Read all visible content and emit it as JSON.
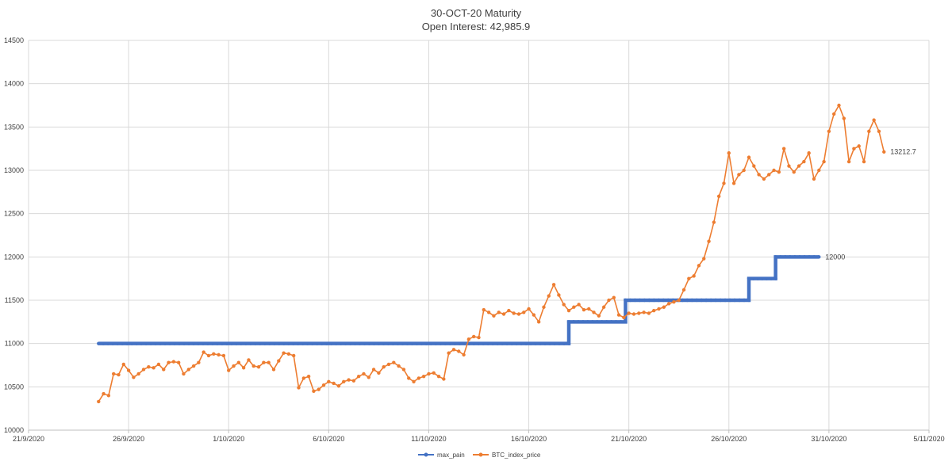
{
  "chart_data": {
    "type": "line",
    "title": "30-OCT-20 Maturity",
    "subtitle": "Open Interest: 42,985.9",
    "xlabel": "",
    "ylabel": "",
    "ylim": [
      10000,
      14500
    ],
    "yticks": [
      10000,
      10500,
      11000,
      11500,
      12000,
      12500,
      13000,
      13500,
      14000,
      14500
    ],
    "ytick_labels": [
      "10000",
      "10500",
      "11000",
      "11500",
      "12000",
      "12500",
      "13000",
      "13500",
      "14000",
      "14500"
    ],
    "xlim": [
      "2020-09-21",
      "2020-11-05"
    ],
    "xticks": [
      "2020-09-21",
      "2020-09-26",
      "2020-10-01",
      "2020-10-06",
      "2020-10-11",
      "2020-10-16",
      "2020-10-21",
      "2020-10-26",
      "2020-10-31",
      "2020-11-05"
    ],
    "xtick_labels": [
      "21/9/2020",
      "26/9/2020",
      "1/10/2020",
      "6/10/2020",
      "11/10/2020",
      "16/10/2020",
      "21/10/2020",
      "26/10/2020",
      "31/10/2020",
      "5/11/2020"
    ],
    "grid": true,
    "legend": "bottom",
    "series": [
      {
        "name": "max_pain",
        "color": "#4472c4",
        "points": [
          [
            "2020-09-24 12:00",
            11000
          ],
          [
            "2020-10-18 00:00",
            11000
          ],
          [
            "2020-10-18 00:00",
            11250
          ],
          [
            "2020-10-20 20:00",
            11250
          ],
          [
            "2020-10-20 20:00",
            11500
          ],
          [
            "2020-10-27 00:00",
            11500
          ],
          [
            "2020-10-27 00:00",
            11750
          ],
          [
            "2020-10-28 08:00",
            11750
          ],
          [
            "2020-10-28 08:00",
            12000
          ],
          [
            "2020-10-30 12:00",
            12000
          ]
        ],
        "end_label": "12000"
      },
      {
        "name": "BTC_index_price",
        "color": "#ed7d31",
        "points": [
          [
            "2020-09-24 12:00",
            10330
          ],
          [
            "2020-09-24 18:00",
            10420
          ],
          [
            "2020-09-25 00:00",
            10400
          ],
          [
            "2020-09-25 06:00",
            10650
          ],
          [
            "2020-09-25 12:00",
            10640
          ],
          [
            "2020-09-25 18:00",
            10760
          ],
          [
            "2020-09-26 00:00",
            10690
          ],
          [
            "2020-09-26 06:00",
            10610
          ],
          [
            "2020-09-26 12:00",
            10650
          ],
          [
            "2020-09-26 18:00",
            10700
          ],
          [
            "2020-09-27 00:00",
            10730
          ],
          [
            "2020-09-27 06:00",
            10720
          ],
          [
            "2020-09-27 12:00",
            10760
          ],
          [
            "2020-09-27 18:00",
            10700
          ],
          [
            "2020-09-28 00:00",
            10780
          ],
          [
            "2020-09-28 06:00",
            10790
          ],
          [
            "2020-09-28 12:00",
            10780
          ],
          [
            "2020-09-28 18:00",
            10650
          ],
          [
            "2020-09-29 00:00",
            10700
          ],
          [
            "2020-09-29 06:00",
            10740
          ],
          [
            "2020-09-29 12:00",
            10780
          ],
          [
            "2020-09-29 18:00",
            10900
          ],
          [
            "2020-09-30 00:00",
            10860
          ],
          [
            "2020-09-30 06:00",
            10880
          ],
          [
            "2020-09-30 12:00",
            10870
          ],
          [
            "2020-09-30 18:00",
            10860
          ],
          [
            "2020-10-01 00:00",
            10690
          ],
          [
            "2020-10-01 06:00",
            10740
          ],
          [
            "2020-10-01 12:00",
            10780
          ],
          [
            "2020-10-01 18:00",
            10720
          ],
          [
            "2020-10-02 00:00",
            10810
          ],
          [
            "2020-10-02 06:00",
            10740
          ],
          [
            "2020-10-02 12:00",
            10730
          ],
          [
            "2020-10-02 18:00",
            10780
          ],
          [
            "2020-10-03 00:00",
            10780
          ],
          [
            "2020-10-03 06:00",
            10700
          ],
          [
            "2020-10-03 12:00",
            10800
          ],
          [
            "2020-10-03 18:00",
            10890
          ],
          [
            "2020-10-04 00:00",
            10880
          ],
          [
            "2020-10-04 06:00",
            10860
          ],
          [
            "2020-10-04 12:00",
            10490
          ],
          [
            "2020-10-04 18:00",
            10600
          ],
          [
            "2020-10-05 00:00",
            10620
          ],
          [
            "2020-10-05 06:00",
            10450
          ],
          [
            "2020-10-05 12:00",
            10470
          ],
          [
            "2020-10-05 18:00",
            10520
          ],
          [
            "2020-10-06 00:00",
            10560
          ],
          [
            "2020-10-06 06:00",
            10540
          ],
          [
            "2020-10-06 12:00",
            10510
          ],
          [
            "2020-10-06 18:00",
            10560
          ],
          [
            "2020-10-07 00:00",
            10580
          ],
          [
            "2020-10-07 06:00",
            10570
          ],
          [
            "2020-10-07 12:00",
            10620
          ],
          [
            "2020-10-07 18:00",
            10650
          ],
          [
            "2020-10-08 00:00",
            10610
          ],
          [
            "2020-10-08 06:00",
            10700
          ],
          [
            "2020-10-08 12:00",
            10660
          ],
          [
            "2020-10-08 18:00",
            10730
          ],
          [
            "2020-10-09 00:00",
            10760
          ],
          [
            "2020-10-09 06:00",
            10780
          ],
          [
            "2020-10-09 12:00",
            10740
          ],
          [
            "2020-10-09 18:00",
            10700
          ],
          [
            "2020-10-10 00:00",
            10600
          ],
          [
            "2020-10-10 06:00",
            10560
          ],
          [
            "2020-10-10 12:00",
            10600
          ],
          [
            "2020-10-10 18:00",
            10620
          ],
          [
            "2020-10-11 00:00",
            10650
          ],
          [
            "2020-10-11 06:00",
            10660
          ],
          [
            "2020-10-11 12:00",
            10620
          ],
          [
            "2020-10-11 18:00",
            10590
          ],
          [
            "2020-10-12 00:00",
            10890
          ],
          [
            "2020-10-12 06:00",
            10930
          ],
          [
            "2020-10-12 12:00",
            10910
          ],
          [
            "2020-10-12 18:00",
            10870
          ],
          [
            "2020-10-13 00:00",
            11050
          ],
          [
            "2020-10-13 06:00",
            11080
          ],
          [
            "2020-10-13 12:00",
            11070
          ],
          [
            "2020-10-13 18:00",
            11390
          ],
          [
            "2020-10-14 00:00",
            11360
          ],
          [
            "2020-10-14 06:00",
            11320
          ],
          [
            "2020-10-14 12:00",
            11360
          ],
          [
            "2020-10-14 18:00",
            11340
          ],
          [
            "2020-10-15 00:00",
            11380
          ],
          [
            "2020-10-15 06:00",
            11350
          ],
          [
            "2020-10-15 12:00",
            11340
          ],
          [
            "2020-10-15 18:00",
            11360
          ],
          [
            "2020-10-16 00:00",
            11400
          ],
          [
            "2020-10-16 06:00",
            11330
          ],
          [
            "2020-10-16 12:00",
            11250
          ],
          [
            "2020-10-16 18:00",
            11420
          ],
          [
            "2020-10-17 00:00",
            11550
          ],
          [
            "2020-10-17 06:00",
            11680
          ],
          [
            "2020-10-17 12:00",
            11560
          ],
          [
            "2020-10-17 18:00",
            11450
          ],
          [
            "2020-10-18 00:00",
            11380
          ],
          [
            "2020-10-18 06:00",
            11420
          ],
          [
            "2020-10-18 12:00",
            11450
          ],
          [
            "2020-10-18 18:00",
            11390
          ],
          [
            "2020-10-19 00:00",
            11400
          ],
          [
            "2020-10-19 06:00",
            11360
          ],
          [
            "2020-10-19 12:00",
            11320
          ],
          [
            "2020-10-19 18:00",
            11420
          ],
          [
            "2020-10-20 00:00",
            11500
          ],
          [
            "2020-10-20 06:00",
            11530
          ],
          [
            "2020-10-20 12:00",
            11330
          ],
          [
            "2020-10-20 18:00",
            11300
          ],
          [
            "2020-10-21 00:00",
            11350
          ],
          [
            "2020-10-21 06:00",
            11340
          ],
          [
            "2020-10-21 12:00",
            11350
          ],
          [
            "2020-10-21 18:00",
            11360
          ],
          [
            "2020-10-22 00:00",
            11350
          ],
          [
            "2020-10-22 06:00",
            11380
          ],
          [
            "2020-10-22 12:00",
            11400
          ],
          [
            "2020-10-22 18:00",
            11420
          ],
          [
            "2020-10-23 00:00",
            11460
          ],
          [
            "2020-10-23 06:00",
            11480
          ],
          [
            "2020-10-23 12:00",
            11500
          ],
          [
            "2020-10-23 18:00",
            11620
          ],
          [
            "2020-10-24 00:00",
            11750
          ],
          [
            "2020-10-24 06:00",
            11780
          ],
          [
            "2020-10-24 12:00",
            11900
          ],
          [
            "2020-10-24 18:00",
            11980
          ],
          [
            "2020-10-25 00:00",
            12180
          ],
          [
            "2020-10-25 06:00",
            12400
          ],
          [
            "2020-10-25 12:00",
            12700
          ],
          [
            "2020-10-25 18:00",
            12850
          ],
          [
            "2020-10-26 00:00",
            13200
          ],
          [
            "2020-10-26 06:00",
            12850
          ],
          [
            "2020-10-26 12:00",
            12950
          ],
          [
            "2020-10-26 18:00",
            13000
          ],
          [
            "2020-10-27 00:00",
            13150
          ],
          [
            "2020-10-27 06:00",
            13050
          ],
          [
            "2020-10-27 12:00",
            12950
          ],
          [
            "2020-10-27 18:00",
            12900
          ],
          [
            "2020-10-28 00:00",
            12950
          ],
          [
            "2020-10-28 06:00",
            13000
          ],
          [
            "2020-10-28 12:00",
            12980
          ],
          [
            "2020-10-28 18:00",
            13250
          ],
          [
            "2020-10-29 00:00",
            13050
          ],
          [
            "2020-10-29 06:00",
            12980
          ],
          [
            "2020-10-29 12:00",
            13050
          ],
          [
            "2020-10-29 18:00",
            13100
          ],
          [
            "2020-10-30 00:00",
            13200
          ],
          [
            "2020-10-30 06:00",
            12900
          ],
          [
            "2020-10-30 12:00",
            13000
          ],
          [
            "2020-10-30 18:00",
            13100
          ],
          [
            "2020-10-31 00:00",
            13450
          ],
          [
            "2020-10-31 06:00",
            13650
          ],
          [
            "2020-10-31 12:00",
            13750
          ],
          [
            "2020-10-31 18:00",
            13600
          ],
          [
            "2020-11-01 00:00",
            13100
          ],
          [
            "2020-11-01 06:00",
            13250
          ],
          [
            "2020-11-01 12:00",
            13280
          ],
          [
            "2020-11-01 18:00",
            13100
          ],
          [
            "2020-11-02 00:00",
            13450
          ],
          [
            "2020-11-02 06:00",
            13580
          ],
          [
            "2020-11-02 12:00",
            13450
          ],
          [
            "2020-11-02 18:00",
            13212.7
          ]
        ],
        "end_label": "13212.7"
      }
    ]
  }
}
